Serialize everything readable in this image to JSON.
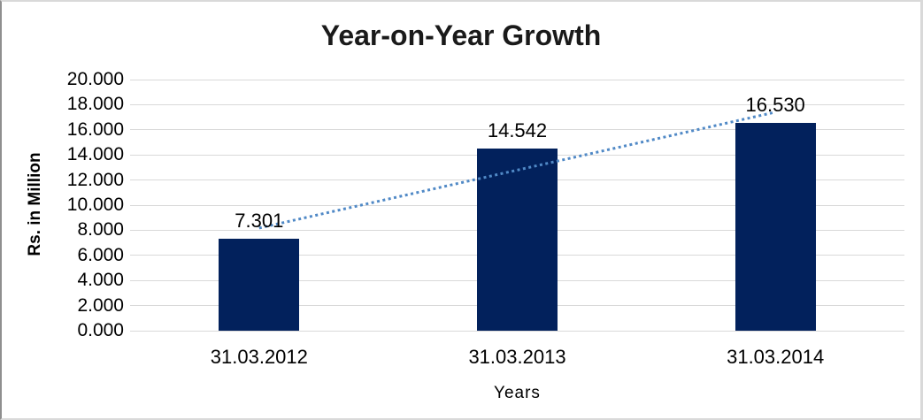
{
  "chart_data": {
    "type": "bar",
    "title": "Year-on-Year Growth",
    "xlabel": "Years",
    "ylabel": "Rs. in Million",
    "categories": [
      "31.03.2012",
      "31.03.2013",
      "31.03.2014"
    ],
    "values": [
      7.301,
      14.542,
      16.53
    ],
    "data_labels": [
      "7.301",
      "14.542",
      "16.530"
    ],
    "ylim": [
      0,
      20
    ],
    "ytick_step": 2,
    "ytick_labels": [
      "0.000",
      "2.000",
      "4.000",
      "6.000",
      "8.000",
      "10.000",
      "12.000",
      "14.000",
      "16.000",
      "18.000",
      "20.000"
    ],
    "grid": true,
    "legend": "none",
    "trendline": {
      "type": "linear",
      "style": "dotted"
    },
    "colors": {
      "bar": "#02215C",
      "trendline": "#5089C6",
      "gridline": "#D9D9D9",
      "text": "#000000",
      "background": "#FFFFFF"
    }
  }
}
